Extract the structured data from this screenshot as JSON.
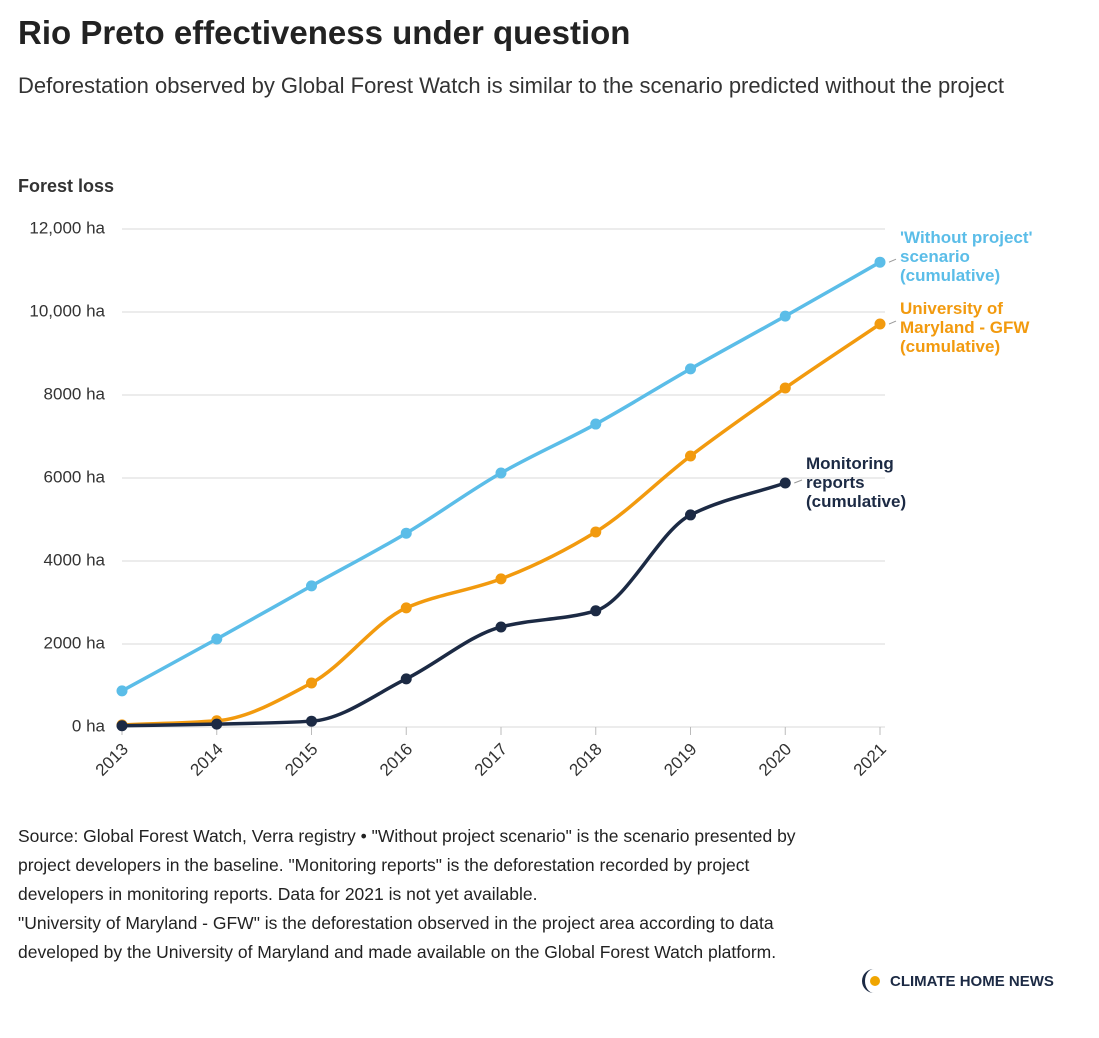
{
  "brand": "CLIMATE HOME NEWS",
  "chart_data": {
    "type": "line",
    "title": "Rio Preto effectiveness under question",
    "subtitle": "Deforestation observed by Global Forest Watch is similar to the scenario predicted without the project",
    "y_label": "Forest loss",
    "categories": [
      "2013",
      "2014",
      "2015",
      "2016",
      "2017",
      "2018",
      "2019",
      "2020",
      "2021"
    ],
    "ylim": [
      0,
      12000
    ],
    "yticks": [
      {
        "value": 0,
        "label": "0 ha"
      },
      {
        "value": 2000,
        "label": "2000 ha"
      },
      {
        "value": 4000,
        "label": "4000 ha"
      },
      {
        "value": 6000,
        "label": "6000 ha"
      },
      {
        "value": 8000,
        "label": "8000 ha"
      },
      {
        "value": 10000,
        "label": "10,000 ha"
      },
      {
        "value": 12000,
        "label": "12,000 ha"
      }
    ],
    "grid": true,
    "series": [
      {
        "name": "'Without project' scenario (cumulative)",
        "color": "#5bbde8",
        "values": [
          870,
          2120,
          3400,
          4670,
          6120,
          7300,
          8630,
          9900,
          11200
        ]
      },
      {
        "name": "University of Maryland - GFW (cumulative)",
        "color": "#f29a0e",
        "values": [
          50,
          150,
          1060,
          2870,
          3570,
          4700,
          6530,
          8170,
          9710
        ]
      },
      {
        "name": "Monitoring reports (cumulative)",
        "color": "#1c2a44",
        "values": [
          30,
          70,
          140,
          1160,
          2410,
          2800,
          5110,
          5880,
          null
        ]
      }
    ],
    "notes": [
      "Source: Global Forest Watch, Verra registry • \"Without project scenario\" is the scenario presented by project developers in the baseline. \"Monitoring reports\" is the deforestation recorded by project developers in monitoring reports. Data for 2021 is not yet available.",
      "\"University of Maryland - GFW\" is the deforestation observed in the project area according to data developed by the University of Maryland and made available on the Global Forest Watch platform."
    ]
  }
}
